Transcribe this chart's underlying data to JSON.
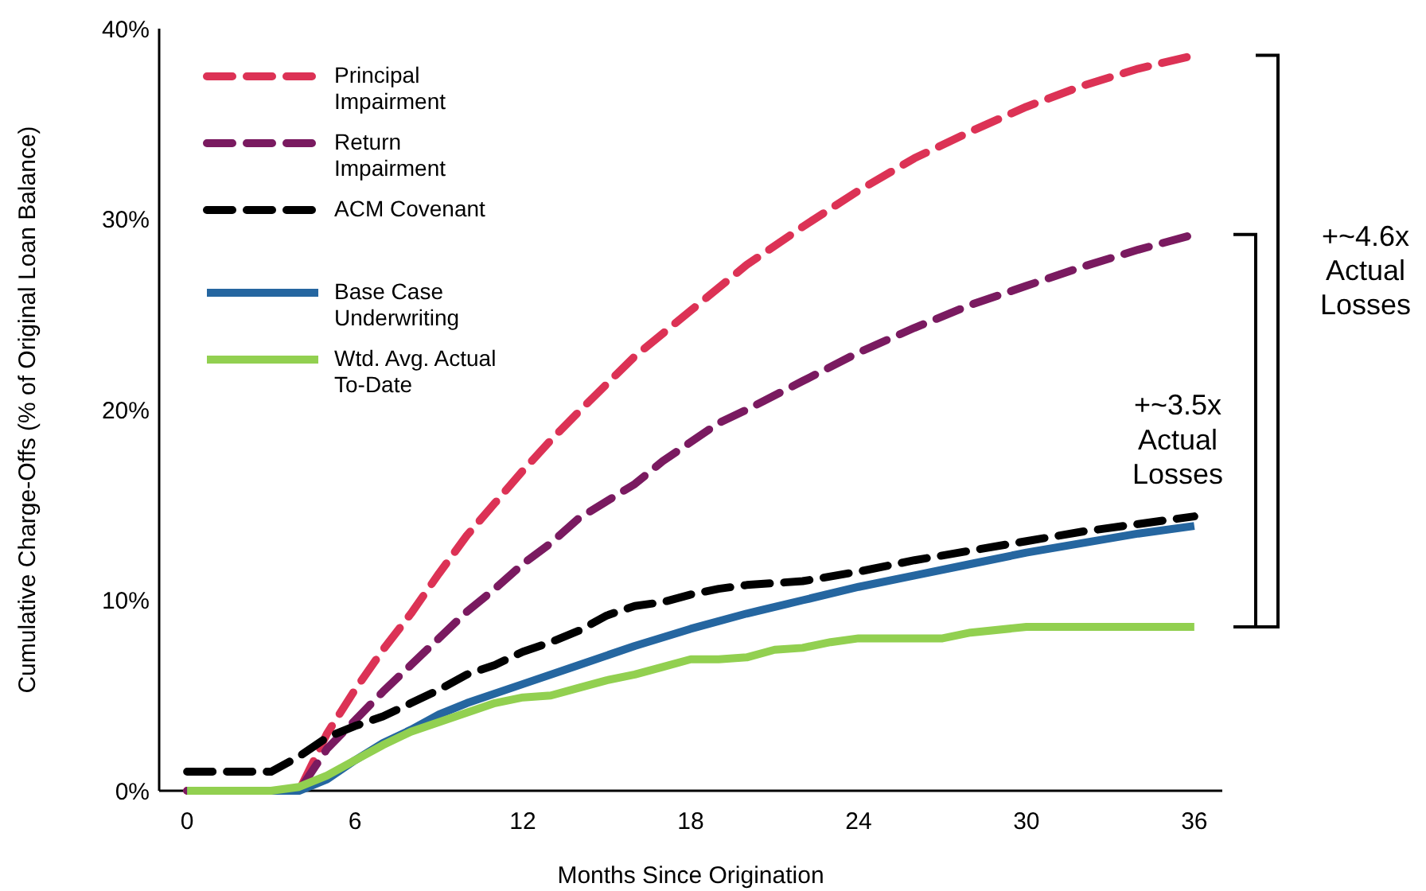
{
  "chart_data": {
    "type": "line",
    "xlabel": "Months Since Origination",
    "ylabel": "Cumulative Charge-Offs (% of Original Loan Balance)",
    "xlim": [
      -1,
      37
    ],
    "xticks": [
      0,
      6,
      12,
      18,
      24,
      30,
      36
    ],
    "ylim": [
      0,
      40
    ],
    "yticks": [
      {
        "value": 0,
        "label": "0%"
      },
      {
        "value": 10,
        "label": "10%"
      },
      {
        "value": 20,
        "label": "20%"
      },
      {
        "value": 30,
        "label": "30%"
      },
      {
        "value": 40,
        "label": "40%"
      }
    ],
    "grid": false,
    "legend": "top left",
    "marker": "none",
    "series": [
      {
        "name": "Principal Impairment",
        "color": "#dc3255",
        "line_style": "dashed",
        "x": [
          0,
          4,
          5,
          6,
          7,
          8,
          9,
          10,
          11,
          12,
          13,
          14,
          16,
          18,
          20,
          22,
          24,
          26,
          28,
          30,
          32,
          34,
          36
        ],
        "values": [
          0,
          0,
          3,
          5.3,
          7.4,
          9.3,
          11.4,
          13.4,
          15.1,
          16.8,
          18.4,
          19.9,
          22.8,
          25.2,
          27.6,
          29.6,
          31.5,
          33.2,
          34.6,
          35.9,
          37,
          37.9,
          38.6
        ]
      },
      {
        "name": "Return Impairment",
        "color": "#7a1a60",
        "line_style": "dashed",
        "x": [
          0,
          4,
          5,
          6,
          7,
          8,
          9,
          10,
          11,
          12,
          13,
          14,
          15,
          16,
          17,
          18,
          19,
          20,
          22,
          24,
          26,
          28,
          30,
          32,
          34,
          36
        ],
        "values": [
          0,
          0,
          2.2,
          3.7,
          5.2,
          6.6,
          8,
          9.4,
          10.6,
          11.9,
          13,
          14.3,
          15.2,
          16.1,
          17.3,
          18.3,
          19.3,
          20,
          21.5,
          23,
          24.3,
          25.5,
          26.5,
          27.5,
          28.4,
          29.2
        ]
      },
      {
        "name": "ACM Covenant",
        "color": "#000000",
        "line_style": "dashed",
        "x": [
          0,
          3,
          4,
          5,
          6,
          7,
          8,
          9,
          10,
          11,
          12,
          13,
          14,
          15,
          16,
          17,
          18,
          19,
          20,
          22,
          24,
          26,
          28,
          30,
          32,
          34,
          36
        ],
        "values": [
          1,
          1,
          1.8,
          2.8,
          3.4,
          3.9,
          4.6,
          5.3,
          6.1,
          6.6,
          7.3,
          7.8,
          8.4,
          9.2,
          9.7,
          9.9,
          10.3,
          10.6,
          10.8,
          11,
          11.5,
          12.1,
          12.6,
          13.1,
          13.6,
          14,
          14.4
        ]
      },
      {
        "name": "Base Case Underwriting",
        "color": "#2566a0",
        "line_style": "solid",
        "x": [
          0,
          4,
          5,
          6,
          7,
          8,
          9,
          10,
          12,
          14,
          16,
          18,
          20,
          22,
          24,
          26,
          28,
          30,
          32,
          34,
          36
        ],
        "values": [
          0,
          0,
          0.6,
          1.6,
          2.5,
          3.2,
          4,
          4.6,
          5.6,
          6.6,
          7.6,
          8.5,
          9.3,
          10,
          10.7,
          11.3,
          11.9,
          12.5,
          13,
          13.5,
          13.9
        ]
      },
      {
        "name": "Wtd. Avg. Actual To-Date",
        "color": "#92d050",
        "line_style": "solid",
        "x": [
          0,
          3,
          4,
          5,
          6,
          7,
          8,
          9,
          10,
          11,
          12,
          13,
          14,
          15,
          16,
          17,
          18,
          19,
          20,
          21,
          22,
          23,
          24,
          27,
          28,
          30,
          36
        ],
        "values": [
          0,
          0,
          0.2,
          0.8,
          1.6,
          2.4,
          3.1,
          3.6,
          4.1,
          4.6,
          4.9,
          5,
          5.4,
          5.8,
          6.1,
          6.5,
          6.9,
          6.9,
          7,
          7.4,
          7.5,
          7.8,
          8,
          8,
          8.3,
          8.6,
          8.6
        ]
      }
    ],
    "annotations": [
      "+~4.6x\nActual\nLosses",
      "+~3.5x\nActual\nLosses"
    ]
  }
}
